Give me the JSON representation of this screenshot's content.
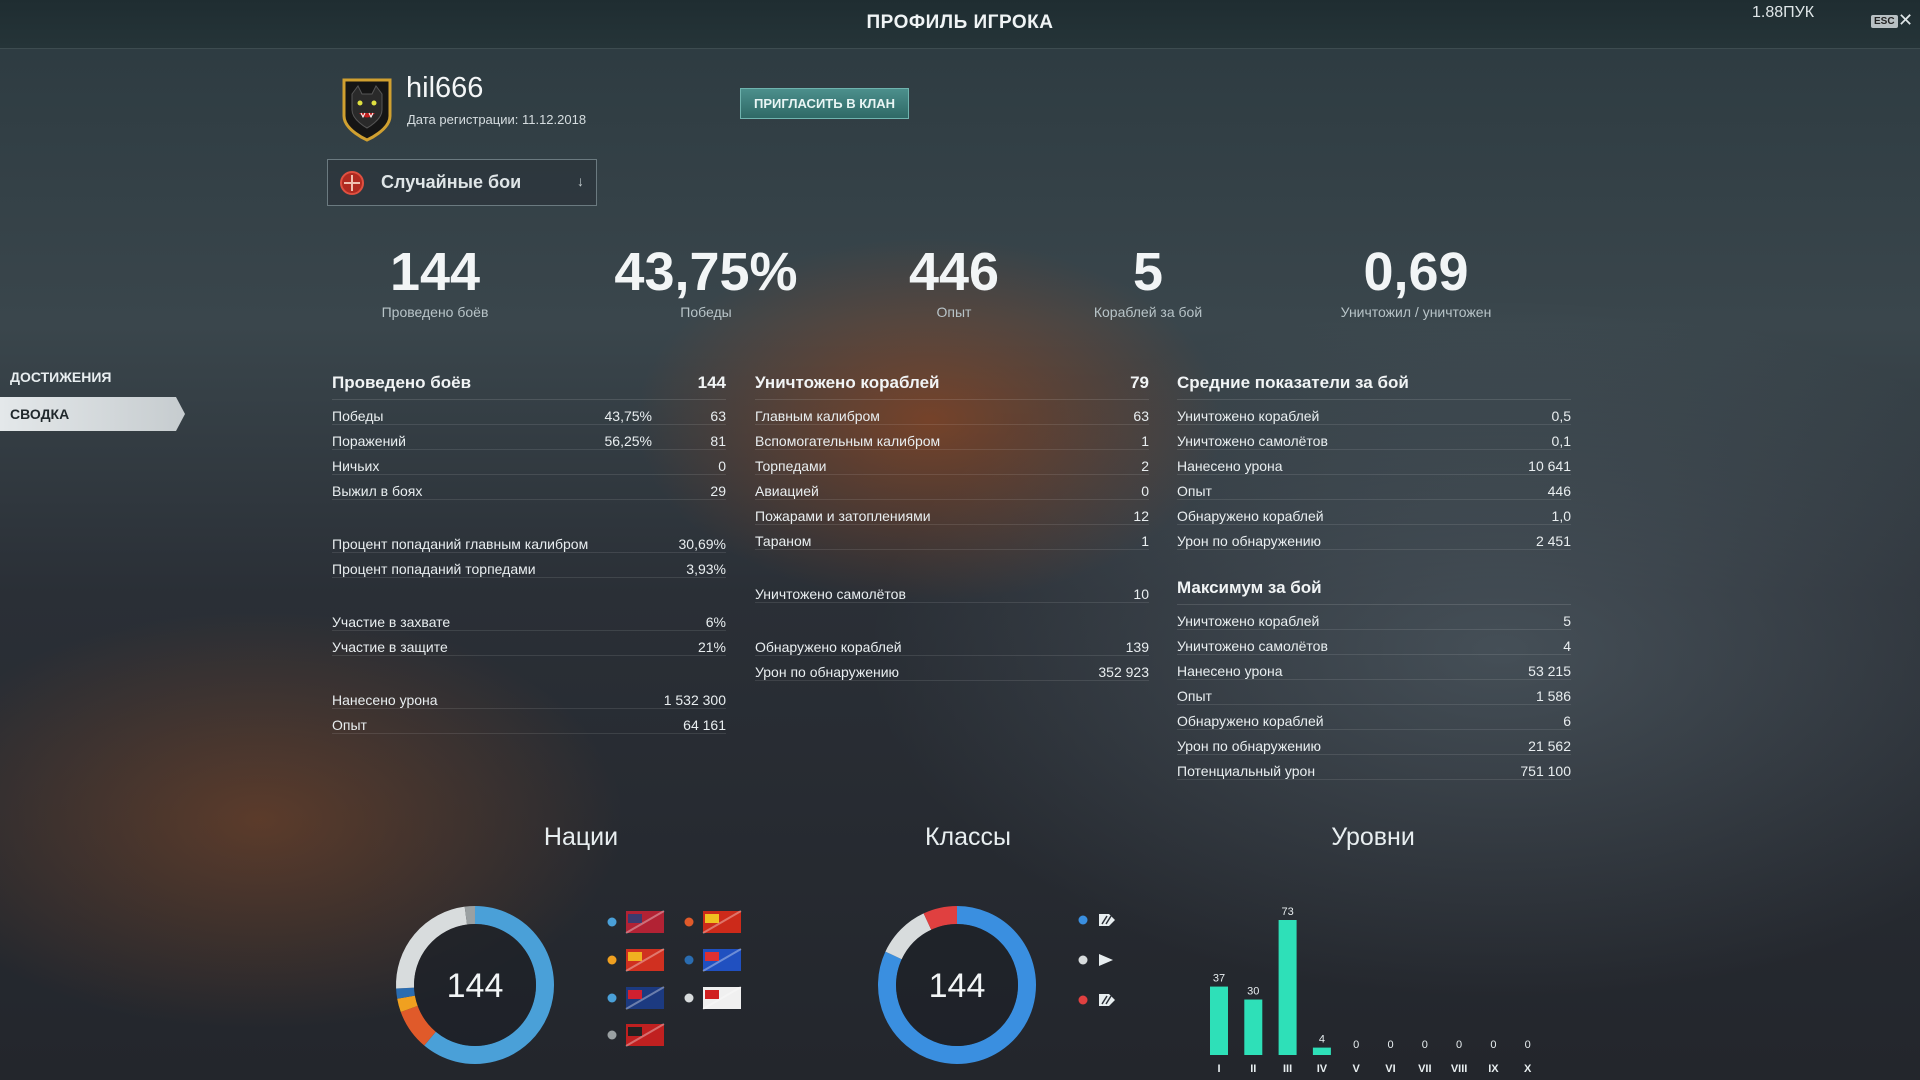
{
  "window": {
    "title": "ПРОФИЛЬ ИГРОКА",
    "fps": "1.88ПУК",
    "esc_label": "ESC"
  },
  "player": {
    "name": "hil666",
    "reg_date": "Дата регистрации: 11.12.2018",
    "invite_label": "ПРИГЛАСИТЬ В КЛАН"
  },
  "mode_select": {
    "value": "Случайные бои"
  },
  "summary": [
    {
      "value": "144",
      "label": "Проведено боёв"
    },
    {
      "value": "43,75%",
      "label": "Победы"
    },
    {
      "value": "446",
      "label": "Опыт"
    },
    {
      "value": "5",
      "label": "Кораблей за бой"
    },
    {
      "value": "0,69",
      "label": "Уничтожил / уничтожен"
    }
  ],
  "sidebar": {
    "items": [
      {
        "label": "ДОСТИЖЕНИЯ"
      },
      {
        "label": "СВОДКА"
      }
    ]
  },
  "col1": {
    "title": "Проведено боёв",
    "total": "144",
    "rows": [
      {
        "label": "Победы",
        "pct": "43,75%",
        "value": "63"
      },
      {
        "label": "Поражений",
        "pct": "56,25%",
        "value": "81"
      },
      {
        "label": "Ничьих",
        "pct": "",
        "value": "0"
      },
      {
        "label": "Выжил в боях",
        "pct": "",
        "value": "29"
      },
      {
        "gap": true
      },
      {
        "label": "Процент попаданий главным калибром",
        "pct": "",
        "value": "30,69%"
      },
      {
        "label": "Процент попаданий торпедами",
        "pct": "",
        "value": "3,93%"
      },
      {
        "gap": true
      },
      {
        "label": "Участие в захвате",
        "pct": "",
        "value": "6%"
      },
      {
        "label": "Участие в защите",
        "pct": "",
        "value": "21%"
      },
      {
        "gap": true
      },
      {
        "label": "Нанесено урона",
        "pct": "",
        "value": "1 532 300"
      },
      {
        "label": "Опыт",
        "pct": "",
        "value": "64 161"
      }
    ]
  },
  "col2": {
    "title": "Уничтожено кораблей",
    "total": "79",
    "rows": [
      {
        "label": "Главным калибром",
        "pct": "",
        "value": "63"
      },
      {
        "label": "Вспомогательным калибром",
        "pct": "",
        "value": "1"
      },
      {
        "label": "Торпедами",
        "pct": "",
        "value": "2"
      },
      {
        "label": "Авиацией",
        "pct": "",
        "value": "0"
      },
      {
        "label": "Пожарами и затоплениями",
        "pct": "",
        "value": "12"
      },
      {
        "label": "Тараном",
        "pct": "",
        "value": "1"
      },
      {
        "gap": true
      },
      {
        "label": "Уничтожено самолётов",
        "pct": "",
        "value": "10"
      },
      {
        "gap": true
      },
      {
        "label": "Обнаружено кораблей",
        "pct": "",
        "value": "139"
      },
      {
        "label": "Урон по обнаружению",
        "pct": "",
        "value": "352 923"
      }
    ]
  },
  "col3": {
    "title": "Средние показатели за бой",
    "total": "",
    "rows": [
      {
        "label": "Уничтожено кораблей",
        "pct": "",
        "value": "0,5"
      },
      {
        "label": "Уничтожено самолётов",
        "pct": "",
        "value": "0,1"
      },
      {
        "label": "Нанесено урона",
        "pct": "",
        "value": "10 641"
      },
      {
        "label": "Опыт",
        "pct": "",
        "value": "446"
      },
      {
        "label": "Обнаружено кораблей",
        "pct": "",
        "value": "1,0"
      },
      {
        "label": "Урон по обнаружению",
        "pct": "",
        "value": "2 451"
      }
    ],
    "title2": "Максимум за бой",
    "rows2": [
      {
        "label": "Уничтожено кораблей",
        "pct": "",
        "value": "5"
      },
      {
        "label": "Уничтожено самолётов",
        "pct": "",
        "value": "4"
      },
      {
        "label": "Нанесено урона",
        "pct": "",
        "value": "53 215"
      },
      {
        "label": "Опыт",
        "pct": "",
        "value": "1 586"
      },
      {
        "label": "Обнаружено кораблей",
        "pct": "",
        "value": "6"
      },
      {
        "label": "Урон по обнаружению",
        "pct": "",
        "value": "21 562"
      },
      {
        "label": "Потенциальный урон",
        "pct": "",
        "value": "751 100"
      }
    ]
  },
  "sections": {
    "nations": "Нации",
    "classes": "Классы",
    "tiers": "Уровни"
  },
  "chart_data": [
    {
      "type": "pie",
      "title": "Нации",
      "center_label": "144",
      "slices": [
        {
          "color": "#4aa0d8",
          "value": 88
        },
        {
          "color": "#e05a2a",
          "value": 12
        },
        {
          "color": "#f0a020",
          "value": 4
        },
        {
          "color": "#2a6cb0",
          "value": 3
        },
        {
          "color": "#d8dcdd",
          "value": 34
        },
        {
          "color": "#9aa0a2",
          "value": 3
        }
      ],
      "legend_dot_colors": [
        "#4aa0d8",
        "#e05a2a",
        "#f0a020",
        "#2a6cb0",
        "#4aa0d8",
        "#d8dcdd",
        "#9aa0a2"
      ],
      "legend_icons": [
        "flag-usa-icon",
        "flag-ussr-icon",
        "flag-germany-icon",
        "flag-france-icon",
        "flag-uk-icon",
        "flag-japan-icon",
        "flag-pan-asia-icon"
      ]
    },
    {
      "type": "pie",
      "title": "Классы",
      "center_label": "144",
      "slices": [
        {
          "color": "#3a8fe0",
          "value": 118
        },
        {
          "color": "#d8dcdd",
          "value": 16
        },
        {
          "color": "#e04040",
          "value": 10
        }
      ],
      "legend_dot_colors": [
        "#3a8fe0",
        "#d8dcdd",
        "#e04040"
      ],
      "legend_icons": [
        "battleship-icon",
        "cruiser-icon",
        "destroyer-icon"
      ]
    },
    {
      "type": "bar",
      "title": "Уровни",
      "categories": [
        "I",
        "II",
        "III",
        "IV",
        "V",
        "VI",
        "VII",
        "VIII",
        "IX",
        "X"
      ],
      "values": [
        37,
        30,
        73,
        4,
        0,
        0,
        0,
        0,
        0,
        0
      ],
      "color": "#2ee0b8"
    }
  ]
}
